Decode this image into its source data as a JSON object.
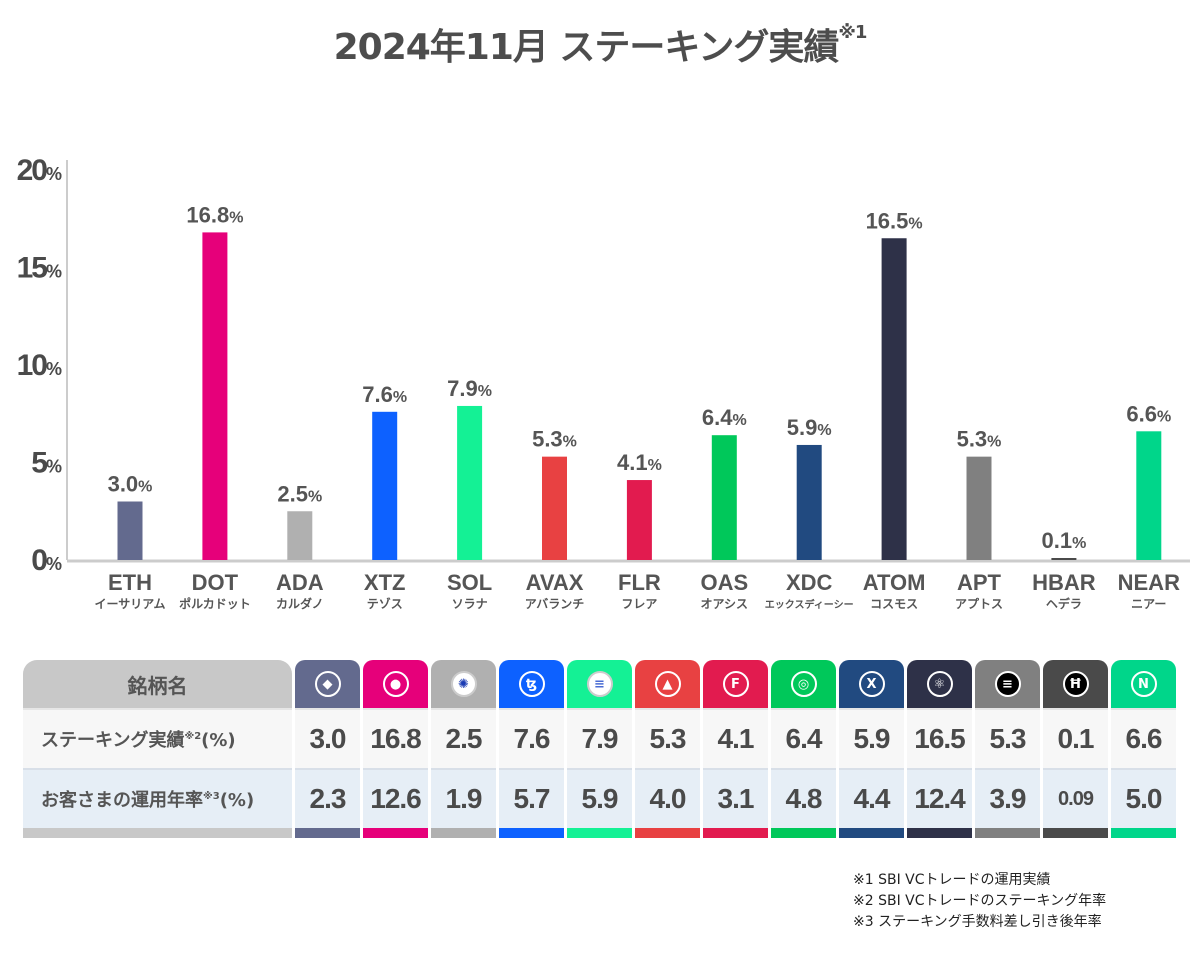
{
  "title": {
    "main": "2024年11月 ステーキング実績",
    "note_mark": "※1"
  },
  "chart_data": {
    "type": "bar",
    "title": "2024年11月 ステーキング実績※1",
    "xlabel": "",
    "ylabel": "",
    "ylim": [
      0,
      20
    ],
    "yticks": [
      {
        "value": 0,
        "label": "0",
        "unit": "%"
      },
      {
        "value": 5,
        "label": "5",
        "unit": "%"
      },
      {
        "value": 10,
        "label": "10",
        "unit": "%"
      },
      {
        "value": 15,
        "label": "15",
        "unit": "%"
      },
      {
        "value": 20,
        "label": "20",
        "unit": "%"
      }
    ],
    "grid": false,
    "legend": "none",
    "categories": [
      "ETH",
      "DOT",
      "ADA",
      "XTZ",
      "SOL",
      "AVAX",
      "FLR",
      "OAS",
      "XDC",
      "ATOM",
      "APT",
      "HBAR",
      "NEAR"
    ],
    "category_kana": [
      "イーサリアム",
      "ポルカドット",
      "カルダノ",
      "テゾス",
      "ソラナ",
      "アバランチ",
      "フレア",
      "オアシス",
      "エックスディーシー",
      "コスモス",
      "アプトス",
      "ヘデラ",
      "ニアー"
    ],
    "values": [
      3.0,
      16.8,
      2.5,
      7.6,
      7.9,
      5.3,
      4.1,
      6.4,
      5.9,
      16.5,
      5.3,
      0.1,
      6.6
    ],
    "value_labels": [
      "3.0",
      "16.8",
      "2.5",
      "7.6",
      "7.9",
      "5.3",
      "4.1",
      "6.4",
      "5.9",
      "16.5",
      "5.3",
      "0.1",
      "6.6"
    ],
    "value_unit": "%",
    "colors": [
      "#636a8e",
      "#e6007a",
      "#b0b0b0",
      "#0d61ff",
      "#14f195",
      "#e84142",
      "#e21b4f",
      "#00c85a",
      "#214a80",
      "#2e3148",
      "#808080",
      "#4a4a4a",
      "#00d68a"
    ]
  },
  "table": {
    "header_label": "銘柄名",
    "row1_label": "ステーキング実績",
    "row1_note": "※2",
    "row1_unit": "(%)",
    "row2_label": "お客さまの運用年率",
    "row2_note": "※3",
    "row2_unit": "(%)",
    "coins": [
      {
        "symbol": "ETH",
        "icon": "ethereum-icon",
        "glyph": "◆",
        "color": "#636a8e",
        "staking": "3.0",
        "customer": "2.3"
      },
      {
        "symbol": "DOT",
        "icon": "polkadot-icon",
        "glyph": "●",
        "color": "#e6007a",
        "staking": "16.8",
        "customer": "12.6"
      },
      {
        "symbol": "ADA",
        "icon": "cardano-icon",
        "glyph": "✺",
        "color": "#b0b0b0",
        "staking": "2.5",
        "customer": "1.9"
      },
      {
        "symbol": "XTZ",
        "icon": "tezos-icon",
        "glyph": "ꜩ",
        "color": "#0d61ff",
        "staking": "7.6",
        "customer": "5.7"
      },
      {
        "symbol": "SOL",
        "icon": "solana-icon",
        "glyph": "≡",
        "color": "#14f195",
        "staking": "7.9",
        "customer": "5.9"
      },
      {
        "symbol": "AVAX",
        "icon": "avalanche-icon",
        "glyph": "▲",
        "color": "#e84142",
        "staking": "5.3",
        "customer": "4.0"
      },
      {
        "symbol": "FLR",
        "icon": "flare-icon",
        "glyph": "F",
        "color": "#e21b4f",
        "staking": "4.1",
        "customer": "3.1"
      },
      {
        "symbol": "OAS",
        "icon": "oasys-icon",
        "glyph": "◎",
        "color": "#00c85a",
        "staking": "6.4",
        "customer": "4.8"
      },
      {
        "symbol": "XDC",
        "icon": "xdc-icon",
        "glyph": "X",
        "color": "#214a80",
        "staking": "5.9",
        "customer": "4.4"
      },
      {
        "symbol": "ATOM",
        "icon": "cosmos-icon",
        "glyph": "⚛",
        "color": "#2e3148",
        "staking": "16.5",
        "customer": "12.4"
      },
      {
        "symbol": "APT",
        "icon": "aptos-icon",
        "glyph": "≡",
        "color": "#808080",
        "staking": "5.3",
        "customer": "3.9"
      },
      {
        "symbol": "HBAR",
        "icon": "hedera-icon",
        "glyph": "Ħ",
        "color": "#4a4a4a",
        "staking": "0.1",
        "customer": "0.09"
      },
      {
        "symbol": "NEAR",
        "icon": "near-icon",
        "glyph": "Ν",
        "color": "#00d68a",
        "staking": "6.6",
        "customer": "5.0"
      }
    ]
  },
  "notes": [
    "※1  SBI VCトレードの運用実績",
    "※2  SBI VCトレードのステーキング年率",
    "※3  ステーキング手数料差し引き後年率"
  ]
}
